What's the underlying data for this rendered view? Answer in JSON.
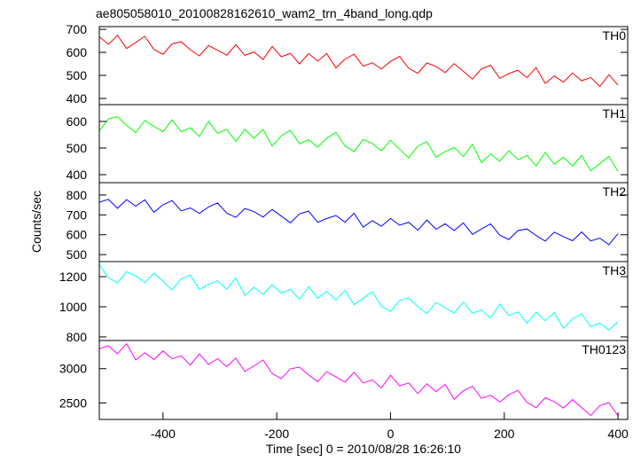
{
  "chart_data": [
    {
      "type": "line",
      "title": "ae805058010_20100828162610_wam2_trn_4band_long.qdp",
      "label": "TH0",
      "color": "#ff0000",
      "x": [
        -512,
        -496,
        -480,
        -464,
        -448,
        -432,
        -416,
        -400,
        -384,
        -368,
        -352,
        -336,
        -320,
        -304,
        -288,
        -272,
        -256,
        -240,
        -224,
        -208,
        -192,
        -176,
        -160,
        -144,
        -128,
        -112,
        -96,
        -80,
        -64,
        -48,
        -32,
        -16,
        0,
        16,
        32,
        48,
        64,
        80,
        96,
        112,
        128,
        144,
        160,
        176,
        192,
        208,
        224,
        240,
        256,
        272,
        288,
        304,
        320,
        336,
        352,
        368,
        384,
        400
      ],
      "values": [
        668,
        635,
        674,
        617,
        643,
        670,
        613,
        592,
        637,
        646,
        612,
        585,
        630,
        609,
        588,
        633,
        587,
        602,
        569,
        626,
        581,
        596,
        550,
        595,
        562,
        595,
        532,
        571,
        592,
        540,
        555,
        528,
        561,
        582,
        531,
        509,
        554,
        539,
        512,
        551,
        518,
        484,
        529,
        544,
        487,
        508,
        523,
        490,
        534,
        465,
        498,
        471,
        510,
        477,
        491,
        452,
        503,
        458
      ],
      "xlim": [
        -512,
        417
      ],
      "ylim": [
        373,
        712
      ],
      "yticks": [
        400,
        500,
        600,
        700
      ]
    },
    {
      "type": "line",
      "label": "TH1",
      "color": "#00ff00",
      "x": [
        -512,
        -496,
        -480,
        -464,
        -448,
        -432,
        -416,
        -400,
        -384,
        -368,
        -352,
        -336,
        -320,
        -304,
        -288,
        -272,
        -256,
        -240,
        -224,
        -208,
        -192,
        -176,
        -160,
        -144,
        -128,
        -112,
        -96,
        -80,
        -64,
        -48,
        -32,
        -16,
        0,
        16,
        32,
        48,
        64,
        80,
        96,
        112,
        128,
        144,
        160,
        176,
        192,
        208,
        224,
        240,
        256,
        272,
        288,
        304,
        320,
        336,
        352,
        368,
        384,
        400
      ],
      "values": [
        564,
        609,
        618,
        585,
        558,
        603,
        582,
        561,
        606,
        561,
        576,
        543,
        600,
        555,
        570,
        525,
        570,
        537,
        570,
        507,
        546,
        567,
        516,
        531,
        504,
        537,
        559,
        508,
        487,
        532,
        517,
        490,
        529,
        496,
        463,
        508,
        523,
        466,
        487,
        502,
        469,
        514,
        445,
        478,
        451,
        490,
        457,
        472,
        433,
        484,
        439,
        466,
        433,
        472,
        415,
        442,
        469,
        412
      ],
      "xlim": [
        -512,
        417
      ],
      "ylim": [
        370,
        663
      ],
      "yticks": [
        400,
        500,
        600
      ]
    },
    {
      "type": "line",
      "label": "TH2",
      "color": "#0000ff",
      "ylabel": "Counts/sec",
      "x": [
        -512,
        -496,
        -480,
        -464,
        -448,
        -432,
        -416,
        -400,
        -384,
        -368,
        -352,
        -336,
        -320,
        -304,
        -288,
        -272,
        -256,
        -240,
        -224,
        -208,
        -192,
        -176,
        -160,
        -144,
        -128,
        -112,
        -96,
        -80,
        -64,
        -48,
        -32,
        -16,
        0,
        16,
        32,
        48,
        64,
        80,
        96,
        112,
        128,
        144,
        160,
        176,
        192,
        208,
        224,
        240,
        256,
        272,
        288,
        304,
        320,
        336,
        352,
        368,
        384,
        400
      ],
      "values": [
        764,
        778,
        733,
        777,
        744,
        776,
        713,
        751,
        772,
        720,
        735,
        707,
        740,
        760,
        709,
        687,
        732,
        716,
        689,
        727,
        694,
        660,
        705,
        719,
        662,
        682,
        697,
        663,
        708,
        638,
        671,
        643,
        682,
        648,
        663,
        623,
        674,
        628,
        655,
        621,
        660,
        602,
        629,
        655,
        598,
        576,
        621,
        629,
        596,
        568,
        613,
        591,
        570,
        614,
        569,
        583,
        550,
        606
      ],
      "xlim": [
        -512,
        417
      ],
      "ylim": [
        465,
        862
      ],
      "yticks": [
        500,
        600,
        700,
        800
      ]
    },
    {
      "type": "line",
      "label": "TH3",
      "color": "#00ffff",
      "x": [
        -512,
        -496,
        -480,
        -464,
        -448,
        -432,
        -416,
        -400,
        -384,
        -368,
        -352,
        -336,
        -320,
        -304,
        -288,
        -272,
        -256,
        -240,
        -224,
        -208,
        -192,
        -176,
        -160,
        -144,
        -128,
        -112,
        -96,
        -80,
        -64,
        -48,
        -32,
        -16,
        0,
        16,
        32,
        48,
        64,
        80,
        96,
        112,
        128,
        144,
        160,
        176,
        192,
        208,
        224,
        240,
        256,
        272,
        288,
        304,
        320,
        336,
        352,
        368,
        384,
        400
      ],
      "values": [
        1280,
        1194,
        1158,
        1232,
        1206,
        1160,
        1224,
        1168,
        1112,
        1186,
        1210,
        1114,
        1148,
        1173,
        1117,
        1191,
        1075,
        1129,
        1083,
        1147,
        1091,
        1115,
        1049,
        1133,
        1057,
        1101,
        1045,
        1109,
        1013,
        1057,
        1101,
        1005,
        969,
        1043,
        1057,
        1001,
        955,
        1029,
        994,
        958,
        1032,
        956,
        980,
        924,
        1018,
        942,
        966,
        890,
        964,
        908,
        962,
        856,
        920,
        954,
        868,
        892,
        846,
        900
      ],
      "xlim": [
        -512,
        417
      ],
      "ylim": [
        776,
        1300
      ],
      "yticks": [
        800,
        1000,
        1200
      ]
    },
    {
      "type": "line",
      "label": "TH0123",
      "color": "#ff00ff",
      "xlabel": "Time [sec] 0 = 2010/08/28 16:26:10",
      "x": [
        -512,
        -496,
        -480,
        -464,
        -448,
        -432,
        -416,
        -400,
        -384,
        -368,
        -352,
        -336,
        -320,
        -304,
        -288,
        -272,
        -256,
        -240,
        -224,
        -208,
        -192,
        -176,
        -160,
        -144,
        -128,
        -112,
        -96,
        -80,
        -64,
        -48,
        -32,
        -16,
        0,
        16,
        32,
        48,
        64,
        80,
        96,
        112,
        128,
        144,
        160,
        176,
        192,
        208,
        224,
        240,
        256,
        272,
        288,
        304,
        320,
        336,
        352,
        368,
        384,
        400
      ],
      "values": [
        3290,
        3334,
        3218,
        3363,
        3127,
        3231,
        3135,
        3259,
        3144,
        3188,
        3052,
        3216,
        3061,
        3145,
        3029,
        3153,
        2957,
        3042,
        3126,
        2930,
        2854,
        2998,
        3023,
        2907,
        2811,
        2955,
        2879,
        2804,
        2948,
        2792,
        2836,
        2720,
        2905,
        2749,
        2793,
        2637,
        2781,
        2666,
        2770,
        2554,
        2678,
        2743,
        2567,
        2611,
        2515,
        2619,
        2684,
        2508,
        2432,
        2576,
        2520,
        2425,
        2549,
        2433,
        2317,
        2461,
        2506,
        2310
      ],
      "xlim": [
        -512,
        417
      ],
      "ylim": [
        2260,
        3410
      ],
      "yticks": [
        2500,
        3000
      ],
      "xticks": [
        -400,
        -200,
        0,
        200,
        400
      ]
    }
  ]
}
